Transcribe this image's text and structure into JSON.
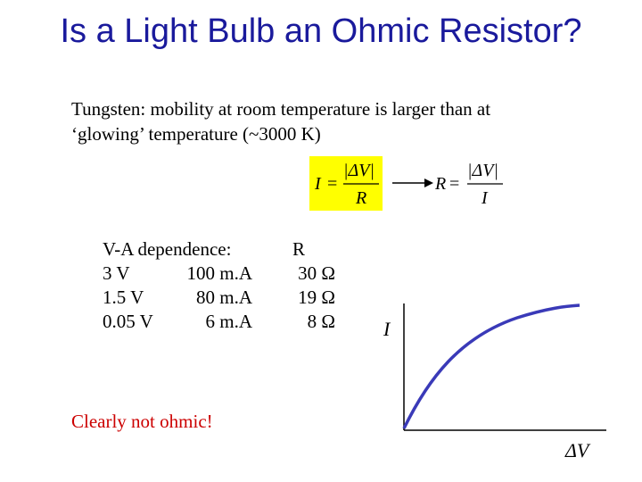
{
  "title": "Is a Light Bulb an Ohmic Resistor?",
  "intro": {
    "line1": "Tungsten: mobility at room temperature is larger than at",
    "line2": "‘glowing’ temperature (~3000 K)"
  },
  "equations": {
    "left": {
      "lhs": "I",
      "eq": "=",
      "num": "|ΔV|",
      "den": "R"
    },
    "right": {
      "lhs": "R",
      "eq": "=",
      "num": "|ΔV|",
      "den": "I"
    },
    "highlight_color": "#ffff00"
  },
  "table": {
    "header": "V-A dependence:",
    "rows": [
      {
        "v": "3 V",
        "i": "100 m.A",
        "r": "30 Ω"
      },
      {
        "v": "1.5 V",
        "i": "80 m.A",
        "r": "19 Ω"
      },
      {
        "v": "0.05 V",
        "i": "6 m.A",
        "r": "8 Ω"
      }
    ],
    "r_header": "R"
  },
  "conclusion": "Clearly not ohmic!",
  "colors": {
    "title": "#1a1a9c",
    "conclusion": "#cc0000",
    "curve": "#3a3ab8"
  },
  "graph": {
    "y_label": "I",
    "x_label": "ΔV"
  }
}
